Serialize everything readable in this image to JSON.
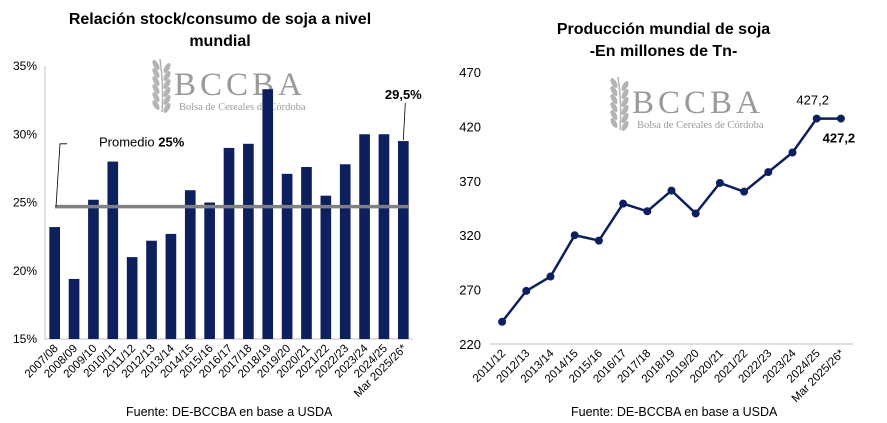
{
  "colors": {
    "bar": "#0d1f5c",
    "line": "#0d1f5c",
    "average": "#808080",
    "axis": "#bfbfbf",
    "watermark": "#9a9a9a"
  },
  "watermark": {
    "letters": "BCCBA",
    "subtitle": "Bolsa de Cereales de Córdoba",
    "icon": "wheat-icon"
  },
  "left": {
    "title_line1": "Relación stock/consumo de soja a nivel",
    "title_line2": "mundial",
    "source": "Fuente: DE-BCCBA en base a USDA",
    "chart_data": {
      "type": "bar",
      "categories": [
        "2007/08",
        "2008/09",
        "2009/10",
        "2010/11",
        "2011/12",
        "2012/13",
        "2013/14",
        "2014/15",
        "2015/16",
        "2016/17",
        "2017/18",
        "2018/19",
        "2019/20",
        "2020/21",
        "2021/22",
        "2022/23",
        "2023/24",
        "2024/25",
        "Mar 2025/26*"
      ],
      "values": [
        23.2,
        19.4,
        25.2,
        28.0,
        21.0,
        22.2,
        22.7,
        25.9,
        25.0,
        29.0,
        29.3,
        33.3,
        27.1,
        27.6,
        25.5,
        27.8,
        30.0,
        30.0,
        29.5
      ],
      "ylim": [
        15,
        35
      ],
      "yticks": [
        "15%",
        "20%",
        "25%",
        "30%",
        "35%"
      ],
      "ytick_values": [
        15,
        20,
        25,
        30,
        35
      ],
      "average": {
        "value": 24.7,
        "label_prefix": "Promedio ",
        "label_value": "25%"
      },
      "last_label": "29,5%",
      "grid": false
    }
  },
  "right": {
    "title_line1": "Producción mundial de soja",
    "title_line2": "-En millones de Tn-",
    "source": "Fuente: DE-BCCBA en base a USDA",
    "chart_data": {
      "type": "line",
      "categories": [
        "2011/12",
        "2012/13",
        "2013/14",
        "2014/15",
        "2015/16",
        "2016/17",
        "2017/18",
        "2018/19",
        "2019/20",
        "2020/21",
        "2021/22",
        "2022/23",
        "2023/24",
        "2024/25",
        "Mar 2025/26*"
      ],
      "values": [
        240.4,
        268.8,
        282.0,
        320.0,
        315.0,
        349.0,
        342.0,
        361.0,
        340.0,
        368.0,
        360.0,
        378.0,
        396.0,
        427.2,
        427.2
      ],
      "ylim": [
        220,
        470
      ],
      "yticks": [
        "220",
        "270",
        "320",
        "370",
        "420",
        "470"
      ],
      "ytick_values": [
        220,
        270,
        320,
        370,
        420,
        470
      ],
      "data_labels": [
        "427,2",
        "427,2"
      ],
      "grid": false
    }
  }
}
